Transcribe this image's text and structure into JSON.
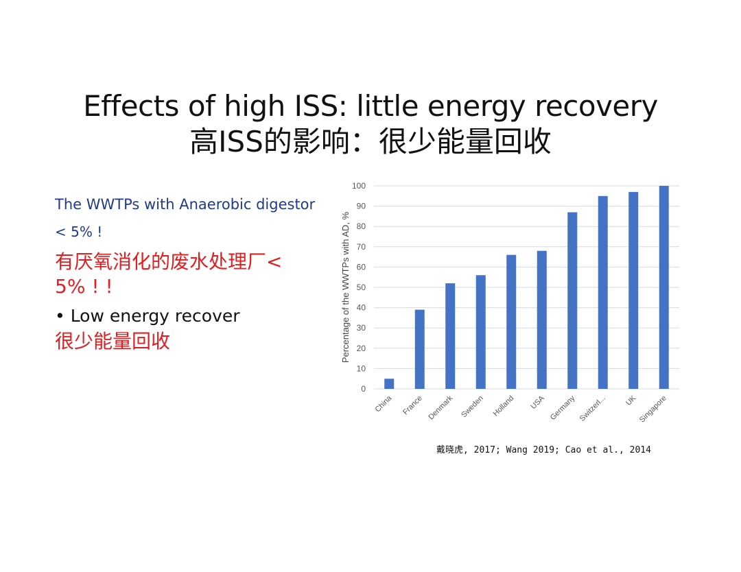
{
  "slide": {
    "title_en": "Effects of high ISS: little energy recovery",
    "title_zh": "高ISS的影响：很少能量回收",
    "left": {
      "line1": "The WWTPs with Anaerobic digestor",
      "line2": "< 5% !",
      "line3": "有厌氧消化的废水处理厂<",
      "line4": "5% ! !",
      "line5": "• Low energy recover",
      "line6": "很少能量回收"
    },
    "citation": "戴晓虎, 2017; Wang 2019; Cao et al., 2014",
    "colors": {
      "bar": "#4472c4",
      "blue_text": "#1f3a8a",
      "red_text": "#e02020"
    }
  },
  "chart_data": {
    "type": "bar",
    "categories": [
      "China",
      "France",
      "Denmark",
      "Sweden",
      "Holland",
      "USA",
      "Germany",
      "Switzerl...",
      "UK",
      "Singapore"
    ],
    "values": [
      5,
      39,
      52,
      56,
      66,
      68,
      87,
      95,
      97,
      100
    ],
    "ylabel": "Percentage of the WWTPs with AD, %",
    "ylim": [
      0,
      100
    ],
    "yticks": [
      0,
      10,
      20,
      30,
      40,
      50,
      60,
      70,
      80,
      90,
      100
    ],
    "grid": true
  }
}
